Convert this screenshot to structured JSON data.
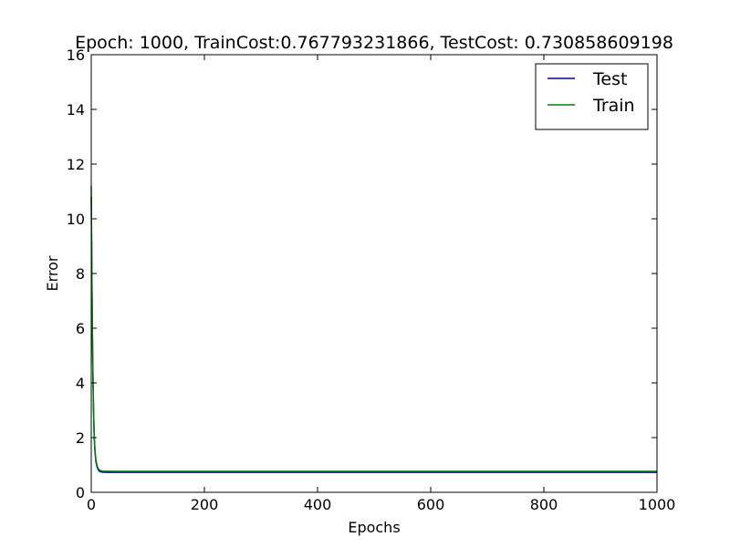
{
  "chart_data": {
    "type": "line",
    "title": "Epoch: 1000, TrainCost:0.767793231866, TestCost: 0.730858609198",
    "xlabel": "Epochs",
    "ylabel": "Error",
    "xlim": [
      0,
      1000
    ],
    "ylim": [
      0,
      16
    ],
    "x_ticks": [
      0,
      200,
      400,
      600,
      800,
      1000
    ],
    "y_ticks": [
      0,
      2,
      4,
      6,
      8,
      10,
      12,
      14,
      16
    ],
    "grid": false,
    "legend_position": "top-right",
    "series": [
      {
        "name": "Test",
        "color": "#0000cc",
        "x": [
          0,
          1,
          2,
          3,
          4,
          5,
          6,
          8,
          10,
          12,
          15,
          20,
          25,
          30,
          40,
          50,
          100,
          200,
          400,
          600,
          800,
          1000
        ],
        "y": [
          10.8,
          8.0,
          5.8,
          4.2,
          3.0,
          2.2,
          1.65,
          1.15,
          0.95,
          0.83,
          0.76,
          0.735,
          0.732,
          0.731,
          0.731,
          0.731,
          0.731,
          0.731,
          0.731,
          0.731,
          0.731,
          0.731
        ]
      },
      {
        "name": "Train",
        "color": "#008000",
        "x": [
          0,
          1,
          2,
          3,
          4,
          5,
          6,
          8,
          10,
          12,
          15,
          20,
          25,
          30,
          40,
          50,
          100,
          200,
          400,
          600,
          800,
          1000
        ],
        "y": [
          11.2,
          8.3,
          6.0,
          4.4,
          3.15,
          2.3,
          1.75,
          1.22,
          1.0,
          0.88,
          0.8,
          0.775,
          0.77,
          0.769,
          0.768,
          0.768,
          0.768,
          0.768,
          0.768,
          0.768,
          0.768,
          0.768
        ]
      }
    ]
  }
}
